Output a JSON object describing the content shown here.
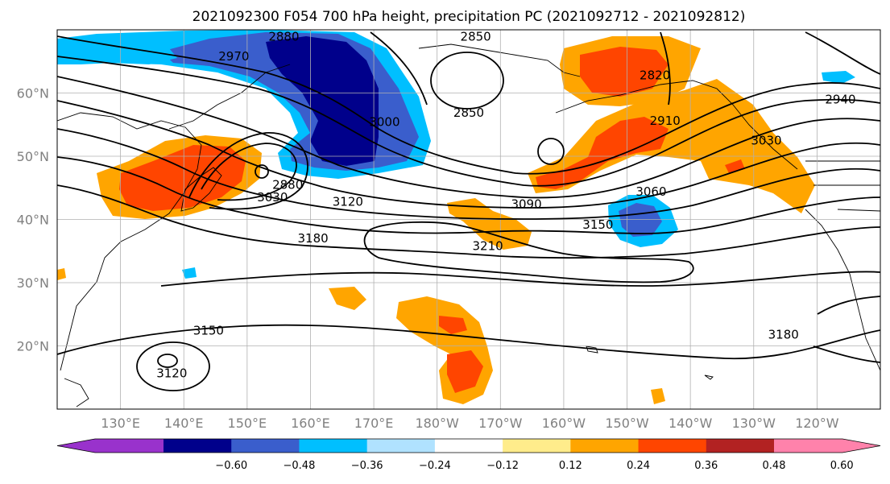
{
  "title": "2021092300 F054 700 hPa height, precipitation PC (2021092712 - 2021092812)",
  "axes": {
    "lat_labels": [
      "60°N",
      "50°N",
      "40°N",
      "30°N",
      "20°N"
    ],
    "lat_values": [
      60,
      50,
      40,
      30,
      20
    ],
    "lon_labels": [
      "130°E",
      "140°E",
      "150°E",
      "160°E",
      "170°E",
      "180°W",
      "170°W",
      "160°W",
      "150°W",
      "140°W",
      "130°W",
      "120°W"
    ],
    "lon_values": [
      130,
      140,
      150,
      160,
      170,
      180,
      190,
      200,
      210,
      220,
      230,
      240
    ],
    "lon_range": [
      120,
      250
    ],
    "lat_range": [
      10,
      70
    ],
    "grid": true
  },
  "colorbar": {
    "colors": [
      "#9932CC",
      "#00008B",
      "#3A5ECC",
      "#00BFFF",
      "#B0E2FF",
      "#FFFFFF",
      "#FFEC8B",
      "#FFA500",
      "#FF4500",
      "#B22222",
      "#FF82AB"
    ],
    "tick_labels": [
      "−0.60",
      "−0.48",
      "−0.36",
      "−0.24",
      "−0.12",
      "0.12",
      "0.24",
      "0.36",
      "0.48",
      "0.60"
    ],
    "extend": "both"
  },
  "contour_labels": [
    {
      "text": "2880",
      "lon": 155.8,
      "lat": 68.9
    },
    {
      "text": "2850",
      "lon": 186.1,
      "lat": 68.9
    },
    {
      "text": "2970",
      "lon": 147.9,
      "lat": 65.8
    },
    {
      "text": "2820",
      "lon": 214.4,
      "lat": 62.8
    },
    {
      "text": "2850",
      "lon": 185.0,
      "lat": 56.9
    },
    {
      "text": "3000",
      "lon": 171.7,
      "lat": 55.4
    },
    {
      "text": "2910",
      "lon": 216.0,
      "lat": 55.6
    },
    {
      "text": "2940",
      "lon": 243.7,
      "lat": 59.0
    },
    {
      "text": "3030",
      "lon": 232.0,
      "lat": 52.5
    },
    {
      "text": "2880",
      "lon": 156.4,
      "lat": 45.5
    },
    {
      "text": "3030",
      "lon": 154.0,
      "lat": 43.5
    },
    {
      "text": "3120",
      "lon": 165.9,
      "lat": 42.8
    },
    {
      "text": "3060",
      "lon": 213.8,
      "lat": 44.4
    },
    {
      "text": "3090",
      "lon": 194.1,
      "lat": 42.4
    },
    {
      "text": "3150",
      "lon": 205.4,
      "lat": 39.2
    },
    {
      "text": "3180",
      "lon": 160.4,
      "lat": 37.0
    },
    {
      "text": "3210",
      "lon": 188.0,
      "lat": 35.8
    },
    {
      "text": "3150",
      "lon": 143.9,
      "lat": 22.4
    },
    {
      "text": "3120",
      "lon": 138.1,
      "lat": 15.7
    },
    {
      "text": "3180",
      "lon": 234.7,
      "lat": 21.8
    }
  ]
}
